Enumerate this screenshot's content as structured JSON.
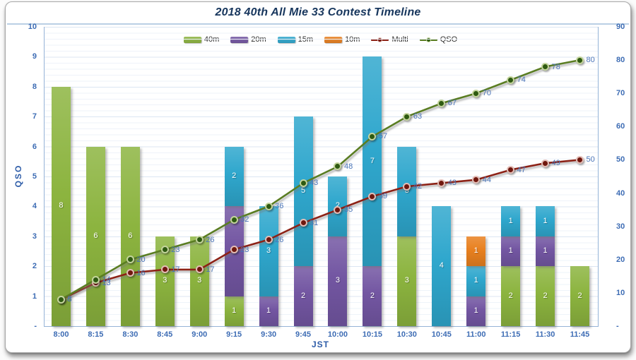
{
  "chart_data": {
    "type": "combo-stacked-bar-line",
    "title": "2018 40th All Mie 33 Contest Timeline",
    "xlabel": "JST",
    "ylabel": "QSO",
    "legend_position": "top",
    "grid": "on",
    "categories": [
      "8:00",
      "8:15",
      "8:30",
      "8:45",
      "9:00",
      "9:15",
      "9:30",
      "9:45",
      "10:00",
      "10:15",
      "10:30",
      "10:45",
      "11:00",
      "11:15",
      "11:30",
      "11:45"
    ],
    "bar_series": [
      {
        "name": "40m",
        "color": "#8cb43f",
        "values": [
          8,
          6,
          6,
          3,
          3,
          1,
          0,
          0,
          0,
          0,
          3,
          0,
          0,
          2,
          2,
          2
        ]
      },
      {
        "name": "20m",
        "color": "#7356a2",
        "values": [
          0,
          0,
          0,
          0,
          0,
          3,
          1,
          2,
          3,
          2,
          0,
          0,
          1,
          1,
          1,
          0
        ]
      },
      {
        "name": "15m",
        "color": "#2fa7cd",
        "values": [
          0,
          0,
          0,
          0,
          0,
          2,
          3,
          5,
          2,
          7,
          3,
          4,
          1,
          1,
          1,
          0
        ]
      },
      {
        "name": "10m",
        "color": "#e8801f",
        "values": [
          0,
          0,
          0,
          0,
          0,
          0,
          0,
          0,
          0,
          0,
          0,
          0,
          1,
          0,
          0,
          0
        ]
      }
    ],
    "line_series": [
      {
        "name": "Multi",
        "color": "#8d2217",
        "marker_fill": "#6f170e",
        "marker_ring": "#e3bdb6",
        "values": [
          8,
          13,
          16,
          17,
          17,
          23,
          26,
          31,
          35,
          39,
          42,
          43,
          44,
          47,
          49,
          50
        ]
      },
      {
        "name": "QSO",
        "color": "#5a7d22",
        "marker_fill": "#2e5a11",
        "marker_ring": "#c3d49c",
        "values": [
          8,
          14,
          20,
          23,
          26,
          32,
          36,
          43,
          48,
          57,
          63,
          67,
          70,
          74,
          78,
          80
        ]
      }
    ],
    "left_axis": {
      "min": 0,
      "max": 10,
      "step": 1,
      "ticks": [
        "10",
        "9",
        "8",
        "7",
        "6",
        "5",
        "4",
        "3",
        "2",
        "1",
        "-"
      ]
    },
    "right_axis": {
      "min": 0,
      "max": 90,
      "step": 10,
      "ticks": [
        "90",
        "80",
        "70",
        "60",
        "50",
        "40",
        "30",
        "20",
        "10",
        "-"
      ]
    },
    "colors": {
      "tick_label": "#3d6cb4",
      "line_data_label": "#4a74b8",
      "title": "#17365d",
      "axis_title": "#2d5ca8",
      "axis_line": "#95b3d7"
    }
  }
}
